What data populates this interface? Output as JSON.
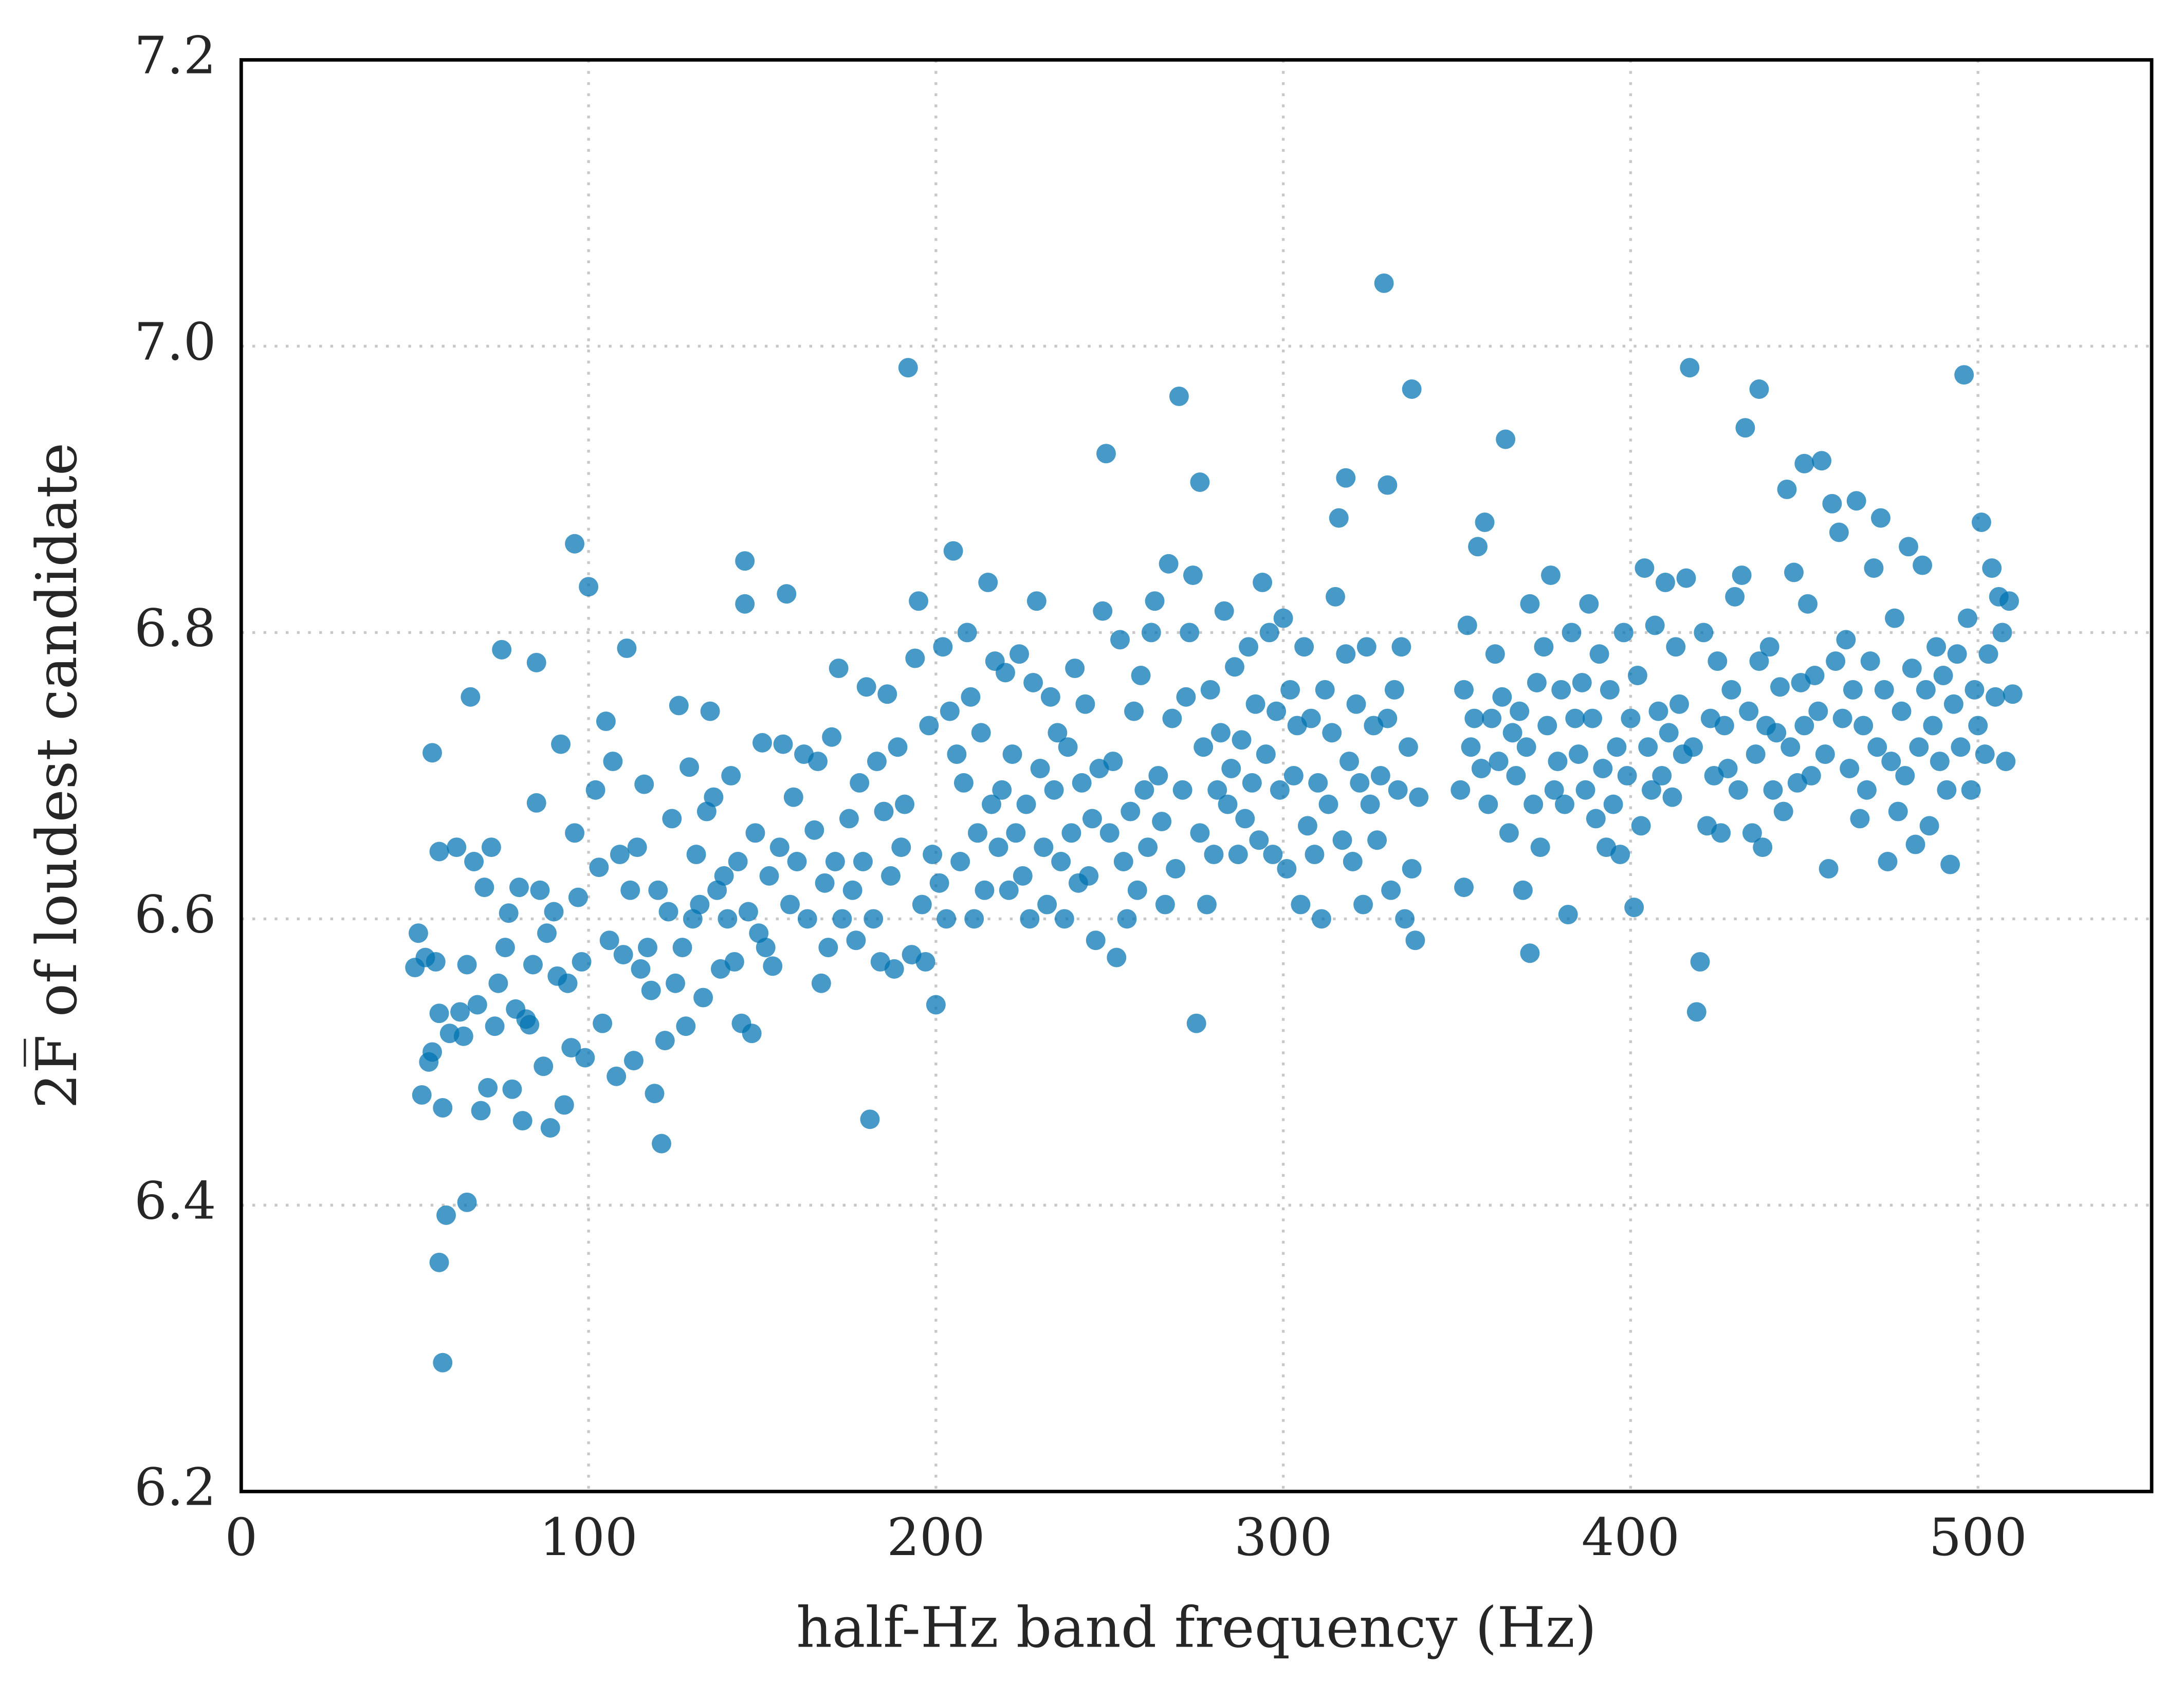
{
  "chart_data": {
    "type": "scatter",
    "xlabel": "half-Hz band frequency (Hz)",
    "ylabel": "2F̅ of loudest candidate",
    "xlim": [
      0,
      550
    ],
    "xticks": [
      0,
      100,
      200,
      300,
      400,
      500
    ],
    "ylim": [
      6.2,
      7.2
    ],
    "yticks": [
      6.2,
      6.4,
      6.6,
      6.8,
      {
        "value": 7.0,
        "label": "7.0"
      },
      7.2
    ],
    "grid": true,
    "color": "#0072b2",
    "x": [
      50,
      51,
      52,
      53,
      54,
      55,
      55,
      56,
      57,
      57,
      58,
      60,
      62,
      63,
      64,
      65,
      66,
      67,
      68,
      69,
      70,
      71,
      72,
      73,
      74,
      75,
      76,
      77,
      78,
      79,
      80,
      81,
      82,
      83,
      84,
      85,
      85,
      86,
      87,
      88,
      89,
      90,
      91,
      92,
      93,
      94,
      95,
      96,
      97,
      98,
      99,
      102,
      103,
      104,
      105,
      106,
      107,
      108,
      109,
      110,
      111,
      112,
      113,
      114,
      115,
      116,
      117,
      118,
      119,
      120,
      122,
      123,
      124,
      125,
      126,
      127,
      128,
      129,
      130,
      131,
      132,
      133,
      134,
      135,
      136,
      137,
      138,
      139,
      140,
      141,
      142,
      143,
      144,
      145,
      145,
      146,
      147,
      148,
      149,
      150,
      151,
      152,
      153,
      155,
      156,
      157,
      158,
      159,
      160,
      162,
      163,
      165,
      166,
      167,
      168,
      169,
      170,
      171,
      172,
      173,
      175,
      176,
      177,
      178,
      179,
      180,
      182,
      183,
      184,
      185,
      186,
      187,
      188,
      189,
      190,
      191,
      193,
      194,
      195,
      196,
      197,
      198,
      199,
      200,
      201,
      202,
      203,
      204,
      205,
      206,
      207,
      208,
      209,
      210,
      211,
      212,
      213,
      214,
      215,
      216,
      217,
      218,
      219,
      220,
      221,
      222,
      223,
      224,
      225,
      226,
      227,
      228,
      229,
      230,
      231,
      232,
      233,
      234,
      235,
      236,
      237,
      238,
      239,
      240,
      241,
      242,
      243,
      244,
      245,
      246,
      247,
      248,
      250,
      251,
      252,
      253,
      254,
      255,
      256,
      257,
      258,
      259,
      260,
      261,
      262,
      263,
      264,
      265,
      266,
      267,
      268,
      269,
      271,
      272,
      273,
      274,
      276,
      277,
      278,
      279,
      280,
      281,
      282,
      283,
      284,
      285,
      286,
      287,
      288,
      289,
      290,
      291,
      292,
      293,
      294,
      295,
      296,
      297,
      298,
      299,
      300,
      301,
      302,
      303,
      304,
      305,
      306,
      307,
      308,
      309,
      310,
      311,
      312,
      313,
      314,
      315,
      316,
      317,
      318,
      319,
      320,
      321,
      322,
      323,
      324,
      325,
      326,
      327,
      328,
      330,
      331,
      332,
      333,
      334,
      335,
      336,
      337,
      338,
      339,
      351,
      352,
      352,
      353,
      354,
      355,
      356,
      357,
      358,
      359,
      360,
      361,
      362,
      363,
      365,
      366,
      367,
      368,
      369,
      370,
      371,
      372,
      373,
      374,
      375,
      376,
      377,
      378,
      379,
      380,
      381,
      382,
      383,
      384,
      385,
      386,
      387,
      388,
      389,
      390,
      391,
      392,
      393,
      394,
      395,
      396,
      397,
      398,
      399,
      400,
      401,
      402,
      403,
      404,
      405,
      406,
      407,
      408,
      409,
      410,
      411,
      412,
      413,
      414,
      415,
      416,
      418,
      421,
      422,
      423,
      424,
      425,
      426,
      427,
      428,
      429,
      430,
      431,
      432,
      434,
      435,
      436,
      437,
      438,
      439,
      440,
      441,
      442,
      443,
      444,
      445,
      446,
      447,
      448,
      449,
      450,
      451,
      452,
      453,
      454,
      456,
      457,
      458,
      459,
      460,
      461,
      462,
      463,
      464,
      465,
      466,
      467,
      468,
      469,
      470,
      471,
      472,
      473,
      474,
      475,
      476,
      477,
      478,
      479,
      480,
      481,
      482,
      483,
      484,
      485,
      486,
      487,
      488,
      489,
      490,
      491,
      492,
      493,
      494,
      495,
      497,
      498,
      499,
      500,
      501,
      502,
      503,
      504,
      505,
      506,
      507,
      508,
      509,
      510,
      329,
      192,
      270,
      417,
      437,
      496,
      337,
      249,
      364,
      433,
      455,
      450,
      318,
      330,
      276,
      96,
      100,
      58,
      57,
      59,
      65,
      181,
      121,
      275,
      419,
      420,
      371
    ],
    "values": [
      6.566,
      6.59,
      6.477,
      6.573,
      6.5,
      6.716,
      6.507,
      6.57,
      6.534,
      6.647,
      6.468,
      6.52,
      6.65,
      6.535,
      6.518,
      6.568,
      6.755,
      6.64,
      6.54,
      6.466,
      6.622,
      6.482,
      6.65,
      6.525,
      6.555,
      6.788,
      6.58,
      6.604,
      6.481,
      6.537,
      6.622,
      6.459,
      6.53,
      6.526,
      6.568,
      6.779,
      6.681,
      6.62,
      6.497,
      6.59,
      6.454,
      6.605,
      6.56,
      6.722,
      6.47,
      6.555,
      6.51,
      6.66,
      6.615,
      6.57,
      6.503,
      6.69,
      6.636,
      6.527,
      6.738,
      6.585,
      6.71,
      6.49,
      6.645,
      6.575,
      6.789,
      6.62,
      6.501,
      6.65,
      6.565,
      6.694,
      6.58,
      6.55,
      6.478,
      6.62,
      6.515,
      6.605,
      6.67,
      6.555,
      6.749,
      6.58,
      6.525,
      6.706,
      6.6,
      6.645,
      6.61,
      6.545,
      6.675,
      6.745,
      6.685,
      6.62,
      6.565,
      6.63,
      6.6,
      6.7,
      6.57,
      6.64,
      6.527,
      6.85,
      6.82,
      6.605,
      6.52,
      6.66,
      6.59,
      6.723,
      6.58,
      6.63,
      6.567,
      6.65,
      6.722,
      6.827,
      6.61,
      6.685,
      6.64,
      6.715,
      6.6,
      6.662,
      6.71,
      6.555,
      6.625,
      6.58,
      6.727,
      6.64,
      6.775,
      6.6,
      6.67,
      6.62,
      6.585,
      6.695,
      6.64,
      6.762,
      6.6,
      6.71,
      6.57,
      6.675,
      6.757,
      6.63,
      6.565,
      6.72,
      6.65,
      6.68,
      6.575,
      6.782,
      6.822,
      6.61,
      6.57,
      6.735,
      6.645,
      6.54,
      6.625,
      6.79,
      6.6,
      6.745,
      6.857,
      6.715,
      6.64,
      6.695,
      6.8,
      6.755,
      6.6,
      6.66,
      6.73,
      6.62,
      6.835,
      6.68,
      6.78,
      6.65,
      6.69,
      6.772,
      6.62,
      6.715,
      6.66,
      6.785,
      6.63,
      6.68,
      6.6,
      6.765,
      6.822,
      6.705,
      6.65,
      6.61,
      6.755,
      6.69,
      6.73,
      6.64,
      6.6,
      6.72,
      6.66,
      6.775,
      6.625,
      6.695,
      6.75,
      6.63,
      6.67,
      6.585,
      6.705,
      6.815,
      6.66,
      6.71,
      6.573,
      6.795,
      6.64,
      6.6,
      6.675,
      6.745,
      6.62,
      6.77,
      6.69,
      6.65,
      6.8,
      6.822,
      6.7,
      6.668,
      6.61,
      6.848,
      6.74,
      6.635,
      6.69,
      6.755,
      6.8,
      6.84,
      6.66,
      6.72,
      6.61,
      6.76,
      6.645,
      6.69,
      6.73,
      6.815,
      6.68,
      6.705,
      6.776,
      6.645,
      6.725,
      6.67,
      6.79,
      6.695,
      6.75,
      6.655,
      6.835,
      6.715,
      6.8,
      6.645,
      6.745,
      6.69,
      6.81,
      6.635,
      6.76,
      6.7,
      6.735,
      6.61,
      6.79,
      6.665,
      6.74,
      6.645,
      6.695,
      6.6,
      6.76,
      6.68,
      6.73,
      6.825,
      6.88,
      6.655,
      6.785,
      6.71,
      6.64,
      6.75,
      6.695,
      6.61,
      6.79,
      6.68,
      6.735,
      6.655,
      6.7,
      6.74,
      6.62,
      6.76,
      6.69,
      6.79,
      6.6,
      6.72,
      6.635,
      6.585,
      6.685,
      6.69,
      6.76,
      6.622,
      6.805,
      6.72,
      6.74,
      6.86,
      6.705,
      6.877,
      6.68,
      6.74,
      6.785,
      6.71,
      6.755,
      6.66,
      6.73,
      6.7,
      6.745,
      6.62,
      6.72,
      6.82,
      6.68,
      6.765,
      6.65,
      6.79,
      6.735,
      6.84,
      6.69,
      6.71,
      6.76,
      6.68,
      6.603,
      6.8,
      6.74,
      6.715,
      6.765,
      6.69,
      6.82,
      6.74,
      6.67,
      6.785,
      6.705,
      6.65,
      6.76,
      6.68,
      6.72,
      6.645,
      6.8,
      6.7,
      6.74,
      6.608,
      6.77,
      6.665,
      6.845,
      6.72,
      6.69,
      6.805,
      6.745,
      6.7,
      6.835,
      6.73,
      6.685,
      6.79,
      6.75,
      6.715,
      6.838,
      6.72,
      6.8,
      6.665,
      6.74,
      6.7,
      6.78,
      6.66,
      6.735,
      6.705,
      6.76,
      6.825,
      6.69,
      6.84,
      6.745,
      6.66,
      6.715,
      6.78,
      6.65,
      6.735,
      6.79,
      6.69,
      6.73,
      6.762,
      6.675,
      6.9,
      6.72,
      6.842,
      6.695,
      6.765,
      6.735,
      6.82,
      6.7,
      6.77,
      6.745,
      6.715,
      6.635,
      6.89,
      6.78,
      6.87,
      6.74,
      6.795,
      6.705,
      6.76,
      6.892,
      6.67,
      6.735,
      6.69,
      6.78,
      6.845,
      6.72,
      6.88,
      6.76,
      6.64,
      6.71,
      6.81,
      6.675,
      6.745,
      6.7,
      6.86,
      6.775,
      6.652,
      6.72,
      6.847,
      6.76,
      6.665,
      6.735,
      6.79,
      6.71,
      6.77,
      6.69,
      6.638,
      6.75,
      6.785,
      6.72,
      6.81,
      6.69,
      6.76,
      6.735,
      6.877,
      6.715,
      6.785,
      6.845,
      6.755,
      6.825,
      6.8,
      6.71,
      6.822,
      6.757,
      7.044,
      6.985,
      6.965,
      6.985,
      6.97,
      6.98,
      6.97,
      6.925,
      6.935,
      6.943,
      6.92,
      6.918,
      6.908,
      6.903,
      6.905,
      6.862,
      6.832,
      6.29,
      6.36,
      6.393,
      6.402,
      6.46,
      6.443,
      6.527,
      6.535,
      6.57,
      6.576
    ]
  }
}
